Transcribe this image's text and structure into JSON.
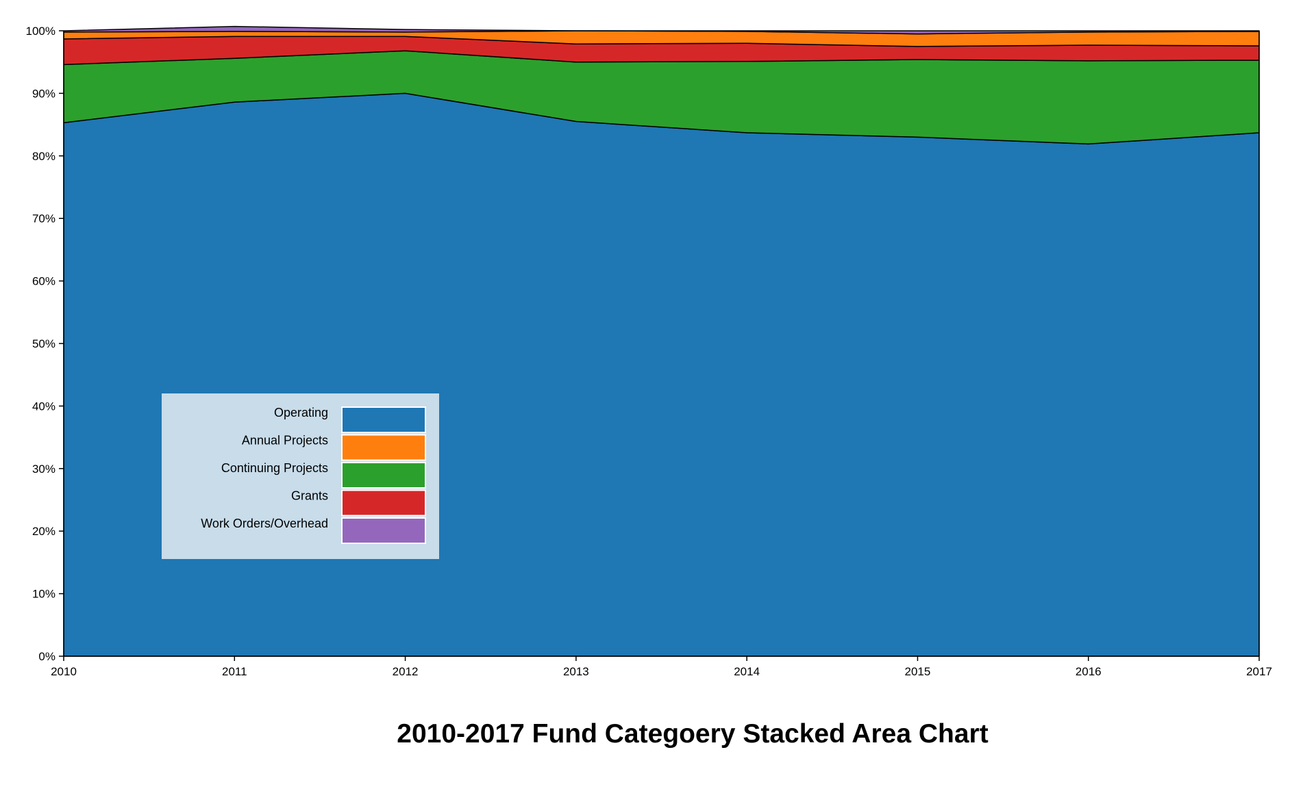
{
  "chart_data": {
    "type": "area",
    "stacked": true,
    "normalized": true,
    "title": "2010-2017 Fund Categoery Stacked Area Chart",
    "xlabel": "",
    "ylabel": "",
    "x": [
      "2010",
      "2011",
      "2012",
      "2013",
      "2014",
      "2015",
      "2016",
      "2017"
    ],
    "x_tick_labels": [
      "2010",
      "2011",
      "2012",
      "2013",
      "2014",
      "2015",
      "2016",
      "2017"
    ],
    "ylim": [
      0,
      100
    ],
    "y_ticks": [
      0,
      10,
      20,
      30,
      40,
      50,
      60,
      70,
      80,
      90,
      100
    ],
    "y_tick_labels": [
      "0%",
      "10%",
      "20%",
      "30%",
      "40%",
      "50%",
      "60%",
      "70%",
      "80%",
      "90%",
      "100%"
    ],
    "grid": false,
    "legend_position": "lower-left",
    "series": [
      {
        "name": "Operating",
        "color": "#1f77b4",
        "values": [
          85.3,
          88.6,
          90.0,
          85.5,
          83.7,
          83.0,
          81.9,
          83.7
        ]
      },
      {
        "name": "Continuing Projects",
        "color": "#2ca02c",
        "values": [
          9.3,
          7.0,
          6.8,
          9.5,
          11.4,
          12.4,
          13.3,
          11.6
        ]
      },
      {
        "name": "Grants",
        "color": "#d62728",
        "values": [
          4.1,
          3.5,
          2.3,
          2.9,
          2.9,
          2.1,
          2.5,
          2.3
        ]
      },
      {
        "name": "Annual Projects",
        "color": "#ff7f0e",
        "values": [
          1.1,
          0.8,
          0.7,
          2.1,
          1.9,
          2.0,
          2.1,
          2.3
        ]
      },
      {
        "name": "Work Orders/Overhead",
        "color": "#9467bd",
        "values": [
          0.2,
          0.8,
          0.4,
          0.0,
          0.1,
          0.5,
          0.2,
          0.1
        ]
      }
    ],
    "legend_entries": [
      {
        "label": "Operating",
        "color": "#1f77b4"
      },
      {
        "label": "Annual Projects",
        "color": "#ff7f0e"
      },
      {
        "label": "Continuing Projects",
        "color": "#2ca02c"
      },
      {
        "label": "Grants",
        "color": "#d62728"
      },
      {
        "label": "Work Orders/Overhead",
        "color": "#9467bd"
      }
    ],
    "legend_background": "#c8dcea"
  }
}
